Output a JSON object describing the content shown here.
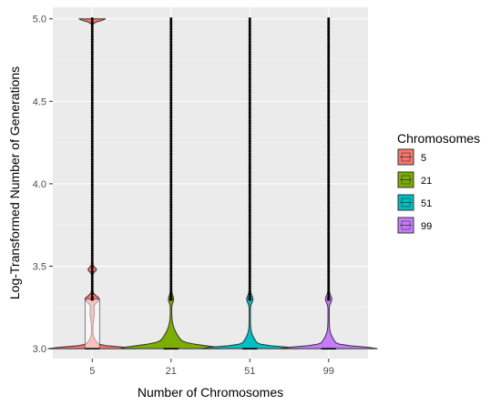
{
  "chart_data": {
    "type": "violin",
    "xlabel": "Number of Chromosomes",
    "ylabel": "Log-Transformed Number of Generations",
    "categories": [
      "5",
      "21",
      "51",
      "99"
    ],
    "ylim": [
      2.94,
      5.07
    ],
    "yticks": [
      3.0,
      3.5,
      4.0,
      4.5,
      5.0
    ],
    "ytick_labels": [
      "3.0",
      "3.5",
      "4.0",
      "4.5",
      "5.0"
    ],
    "grid": true,
    "legend": {
      "title": "Chromosomes",
      "position": "right",
      "entries": [
        "5",
        "21",
        "51",
        "99"
      ]
    },
    "series": [
      {
        "category": "5",
        "color": "#F8766D",
        "median": 3.0,
        "q1": 3.0,
        "q3": 3.3,
        "modes": [
          3.0,
          3.3,
          3.48,
          5.0
        ],
        "point_top": 5.0
      },
      {
        "category": "21",
        "color": "#7CAE00",
        "median": 3.0,
        "q1": 3.0,
        "q3": 3.0,
        "modes": [
          3.0,
          3.3
        ],
        "point_top": 5.0
      },
      {
        "category": "51",
        "color": "#00BFC4",
        "median": 3.0,
        "q1": 3.0,
        "q3": 3.0,
        "modes": [
          3.0,
          3.3
        ],
        "point_top": 5.0
      },
      {
        "category": "99",
        "color": "#C77CFF",
        "median": 3.0,
        "q1": 3.0,
        "q3": 3.0,
        "modes": [
          3.0,
          3.3
        ],
        "point_top": 5.0
      }
    ]
  }
}
